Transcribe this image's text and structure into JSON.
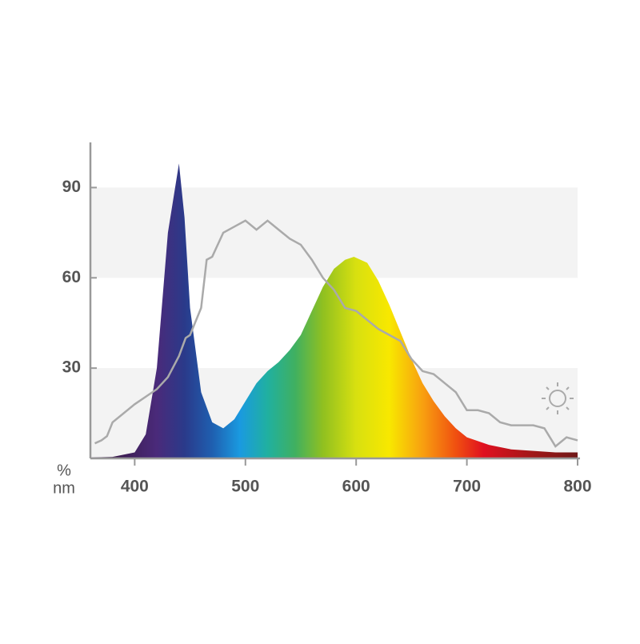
{
  "chart_data": {
    "type": "area",
    "y_unit_label": "%",
    "x_unit_label": "nm",
    "xlim": [
      360,
      800
    ],
    "ylim": [
      0,
      105
    ],
    "xticks": [
      400,
      500,
      600,
      700,
      800
    ],
    "yticks": [
      30,
      60,
      90
    ],
    "grid": "bands",
    "series": [
      {
        "kind": "spectrum-fill",
        "x": [
          360,
          380,
          400,
          410,
          420,
          430,
          440,
          445,
          450,
          460,
          470,
          480,
          490,
          500,
          510,
          520,
          530,
          540,
          550,
          560,
          570,
          580,
          590,
          598,
          610,
          620,
          630,
          640,
          650,
          660,
          670,
          680,
          690,
          700,
          720,
          740,
          760,
          780,
          800
        ],
        "values": [
          0.3,
          0.5,
          2,
          8,
          30,
          75,
          98,
          80,
          50,
          22,
          12,
          10,
          13,
          19,
          25,
          29,
          32,
          36,
          41,
          49,
          57,
          63,
          66,
          67,
          65,
          59,
          51,
          42,
          33,
          25,
          19,
          14,
          10,
          7,
          4.5,
          3,
          2.5,
          2,
          2
        ]
      },
      {
        "kind": "line",
        "color": "#aaaaaa",
        "x": [
          364,
          370,
          375,
          380,
          400,
          420,
          430,
          440,
          446,
          450,
          460,
          465,
          470,
          480,
          490,
          500,
          510,
          520,
          530,
          540,
          550,
          560,
          570,
          580,
          590,
          600,
          610,
          620,
          630,
          640,
          650,
          660,
          670,
          680,
          690,
          700,
          710,
          720,
          730,
          740,
          760,
          770,
          780,
          790,
          800
        ],
        "values": [
          5,
          6,
          7.4,
          12,
          18,
          23,
          27,
          34,
          40,
          41,
          50,
          66,
          67,
          75,
          77,
          79,
          76,
          79,
          76,
          73,
          71,
          66,
          60,
          56,
          50,
          49,
          46,
          43,
          41,
          39,
          33,
          29,
          28,
          25,
          22,
          16,
          16,
          15,
          12,
          11,
          11,
          10,
          4,
          7,
          6
        ]
      }
    ]
  }
}
